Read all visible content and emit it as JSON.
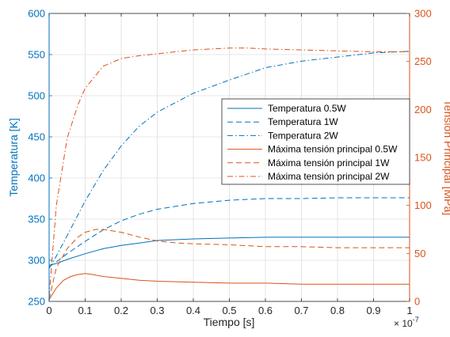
{
  "chart_data": {
    "type": "line",
    "xlabel": "Tiempo [s]",
    "x_multiplier_label": "× 10",
    "x_multiplier_exp": "-7",
    "ylabel_left": "Temperatura [K]",
    "ylabel_right": "Tensión Principal [MPa]",
    "xlim": [
      0,
      1e-07
    ],
    "ylim_left": [
      250,
      600
    ],
    "ylim_right": [
      0,
      300
    ],
    "grid": true,
    "legend_position": "center-right",
    "x_ticks": [
      0,
      0.1,
      0.2,
      0.3,
      0.4,
      0.5,
      0.6,
      0.7,
      0.8,
      0.9,
      1
    ],
    "x_tick_labels": [
      "0",
      "0.1",
      "0.2",
      "0.3",
      "0.4",
      "0.5",
      "0.6",
      "0.7",
      "0.8",
      "0.9",
      "1"
    ],
    "y_left_ticks": [
      250,
      300,
      350,
      400,
      450,
      500,
      550,
      600
    ],
    "y_left_tick_labels": [
      "250",
      "300",
      "350",
      "400",
      "450",
      "500",
      "550",
      "600"
    ],
    "y_right_ticks": [
      0,
      50,
      100,
      150,
      200,
      250,
      300
    ],
    "y_right_tick_labels": [
      "0",
      "50",
      "100",
      "150",
      "200",
      "250",
      "300"
    ],
    "colors": {
      "left": "#0072BD",
      "right": "#D95319"
    },
    "series": [
      {
        "name": "Temperatura 0.5W",
        "axis": "left",
        "line_style": "solid",
        "x": [
          0,
          2e-09,
          5e-09,
          1e-08,
          1.5e-08,
          2e-08,
          2.5e-08,
          3e-08,
          4e-08,
          5e-08,
          6e-08,
          7e-08,
          8e-08,
          9e-08,
          1e-07
        ],
        "y": [
          294,
          296,
          301,
          308,
          314,
          318,
          321,
          324,
          326,
          327,
          328,
          328,
          328,
          328,
          328
        ]
      },
      {
        "name": "Temperatura 1W",
        "axis": "left",
        "line_style": "dashed",
        "x": [
          0,
          2e-09,
          5e-09,
          1e-08,
          1.5e-08,
          2e-08,
          2.5e-08,
          3e-08,
          4e-08,
          5e-08,
          6e-08,
          7e-08,
          8e-08,
          9e-08,
          1e-07
        ],
        "y": [
          292,
          298,
          308,
          323,
          337,
          348,
          356,
          362,
          369,
          373,
          375,
          375,
          376,
          376,
          376
        ]
      },
      {
        "name": "Temperatura 2W",
        "axis": "left",
        "line_style": "dashdot",
        "x": [
          0,
          2e-09,
          5e-09,
          1e-08,
          1.5e-08,
          2e-08,
          2.5e-08,
          3e-08,
          4e-08,
          5e-08,
          6e-08,
          7e-08,
          8e-08,
          9e-08,
          1e-07
        ],
        "y": [
          290,
          305,
          330,
          372,
          409,
          439,
          463,
          480,
          503,
          519,
          534,
          542,
          547,
          552,
          554
        ]
      },
      {
        "name": "Máxima tensión principal 0.5W",
        "axis": "right",
        "line_style": "solid",
        "x": [
          0,
          2e-09,
          4e-09,
          6e-09,
          8e-09,
          1e-08,
          1.2e-08,
          1.5e-08,
          2e-08,
          2.5e-08,
          3e-08,
          4e-08,
          5e-08,
          6e-08,
          7e-08,
          8e-08,
          9e-08,
          1e-07
        ],
        "y": [
          2,
          14,
          22,
          26,
          28,
          29,
          28,
          26,
          24,
          22,
          21,
          20,
          19,
          19,
          18,
          18,
          18,
          18
        ]
      },
      {
        "name": "Máxima tensión principal 1W",
        "axis": "right",
        "line_style": "dashed",
        "x": [
          0,
          2e-09,
          5e-09,
          8e-09,
          1e-08,
          1.3e-08,
          1.5e-08,
          2e-08,
          2.5e-08,
          3e-08,
          3.5e-08,
          4e-08,
          5e-08,
          6e-08,
          7e-08,
          8e-08,
          9e-08,
          1e-07
        ],
        "y": [
          2,
          35,
          55,
          67,
          72,
          75,
          75,
          72,
          67,
          63,
          61,
          60,
          59,
          57,
          57,
          56,
          56,
          56
        ]
      },
      {
        "name": "Máxima tensión principal 2W",
        "axis": "right",
        "line_style": "dashdot",
        "x": [
          0,
          2e-09,
          5e-09,
          8e-09,
          1e-08,
          1.5e-08,
          2e-08,
          2.5e-08,
          3e-08,
          3.5e-08,
          4e-08,
          4.5e-08,
          5e-08,
          5.5e-08,
          6e-08,
          7e-08,
          8e-08,
          9e-08,
          1e-07
        ],
        "y": [
          5,
          100,
          170,
          205,
          222,
          245,
          253,
          256,
          258,
          260,
          262,
          263,
          264,
          264,
          263,
          262,
          261,
          260,
          260
        ]
      }
    ]
  }
}
